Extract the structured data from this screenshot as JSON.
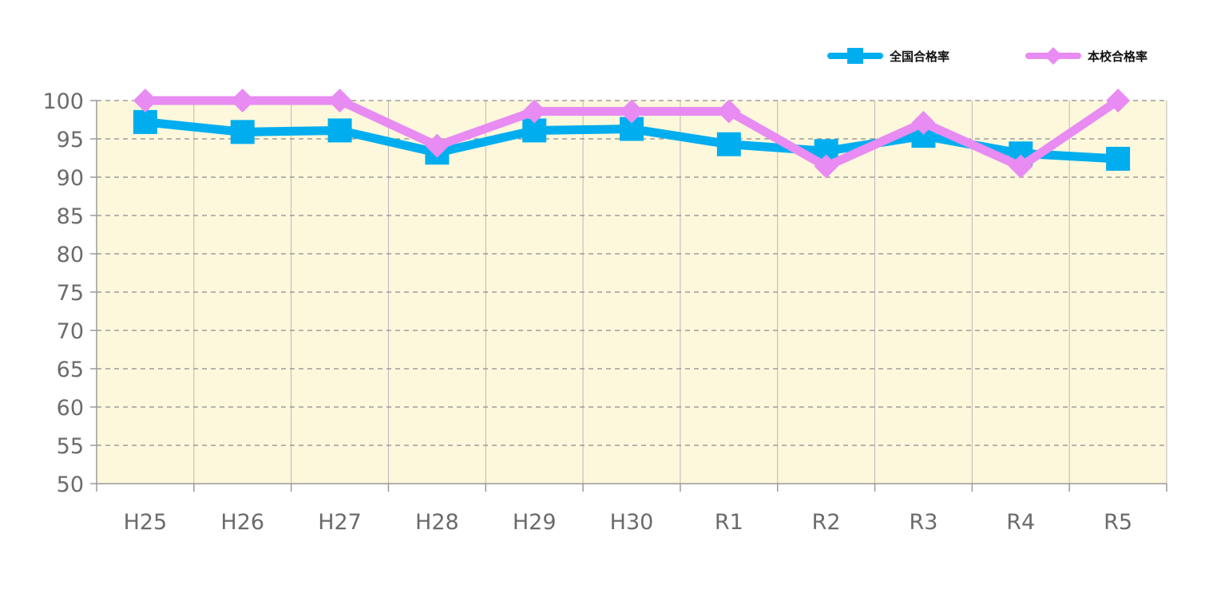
{
  "chart_data": {
    "type": "line",
    "categories": [
      "H25",
      "H26",
      "H27",
      "H28",
      "H29",
      "H30",
      "R1",
      "R2",
      "R3",
      "R4",
      "R5"
    ],
    "series": [
      {
        "name": "全国合格率",
        "color": "#00AEEF",
        "marker": "square",
        "values": [
          97.2,
          95.9,
          96.1,
          93.2,
          96.1,
          96.3,
          94.3,
          93.4,
          95.4,
          93.1,
          92.4
        ]
      },
      {
        "name": "本校合格率",
        "color": "#E88BF2",
        "marker": "diamond",
        "values": [
          100,
          100,
          100,
          94.1,
          98.6,
          98.6,
          98.6,
          91.4,
          97.1,
          91.4,
          100
        ]
      }
    ],
    "ylim": [
      50,
      100
    ],
    "yticks": [
      "50",
      "55",
      "60",
      "65",
      "70",
      "75",
      "80",
      "85",
      "90",
      "95",
      "100"
    ],
    "grid": true,
    "plot_background": "#FDF8DC",
    "legend_position": "top-right",
    "title": "",
    "xlabel": "",
    "ylabel": ""
  }
}
